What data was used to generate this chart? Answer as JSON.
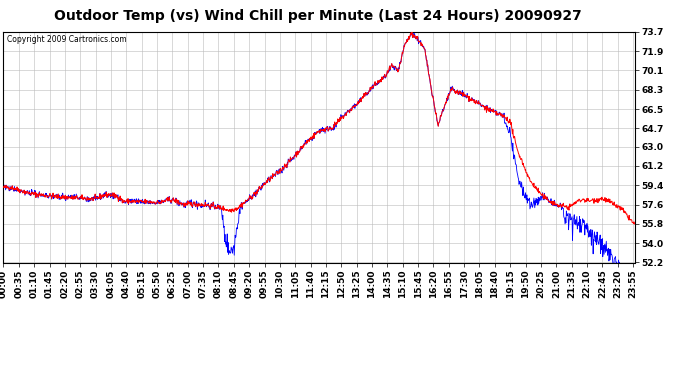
{
  "title": "Outdoor Temp (vs) Wind Chill per Minute (Last 24 Hours) 20090927",
  "copyright": "Copyright 2009 Cartronics.com",
  "yticks": [
    73.7,
    71.9,
    70.1,
    68.3,
    66.5,
    64.7,
    63.0,
    61.2,
    59.4,
    57.6,
    55.8,
    54.0,
    52.2
  ],
  "ymin": 52.2,
  "ymax": 73.7,
  "background_color": "#ffffff",
  "plot_background": "#ffffff",
  "grid_color": "#bbbbbb",
  "red_color": "#ff0000",
  "blue_color": "#0000ff",
  "title_fontsize": 10,
  "tick_fontsize": 6.5,
  "tick_step_minutes": 35
}
